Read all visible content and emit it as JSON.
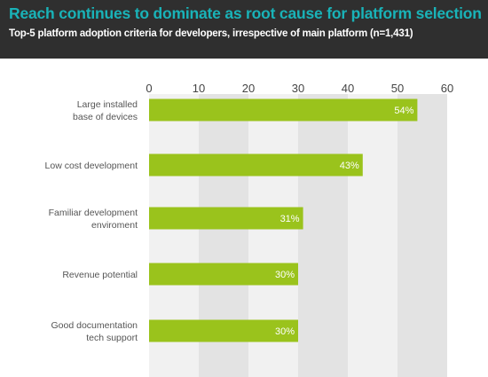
{
  "header": {
    "title": "Reach continues to dominate as root cause for platform selection",
    "subtitle": "Top-5 platform adoption criteria for developers, irrespective of main platform (n=1,431)"
  },
  "colors": {
    "header_bg": "#2f2f2f",
    "title": "#19b3b8",
    "bar": "#9ac31c",
    "band_light": "#f1f1f1",
    "band_dark": "#e3e3e3"
  },
  "chart_data": {
    "type": "bar",
    "orientation": "horizontal",
    "title": "Reach continues to dominate as root cause for platform selection",
    "subtitle": "Top-5 platform adoption criteria for developers, irrespective of main platform (n=1,431)",
    "categories": [
      [
        "Large installed",
        "base of devices"
      ],
      [
        "Low cost development"
      ],
      [
        "Familiar development",
        "enviroment"
      ],
      [
        "Revenue potential"
      ],
      [
        "Good documentation",
        "tech support"
      ]
    ],
    "values": [
      54,
      43,
      31,
      30,
      30
    ],
    "value_labels": [
      "54%",
      "43%",
      "31%",
      "30%",
      "30%"
    ],
    "xlim": [
      0,
      60
    ],
    "xticks": [
      "0",
      "10",
      "20",
      "30",
      "40",
      "50",
      "60"
    ],
    "xticks_position": "top",
    "grid": "alternating vertical bands",
    "legend": "none"
  }
}
